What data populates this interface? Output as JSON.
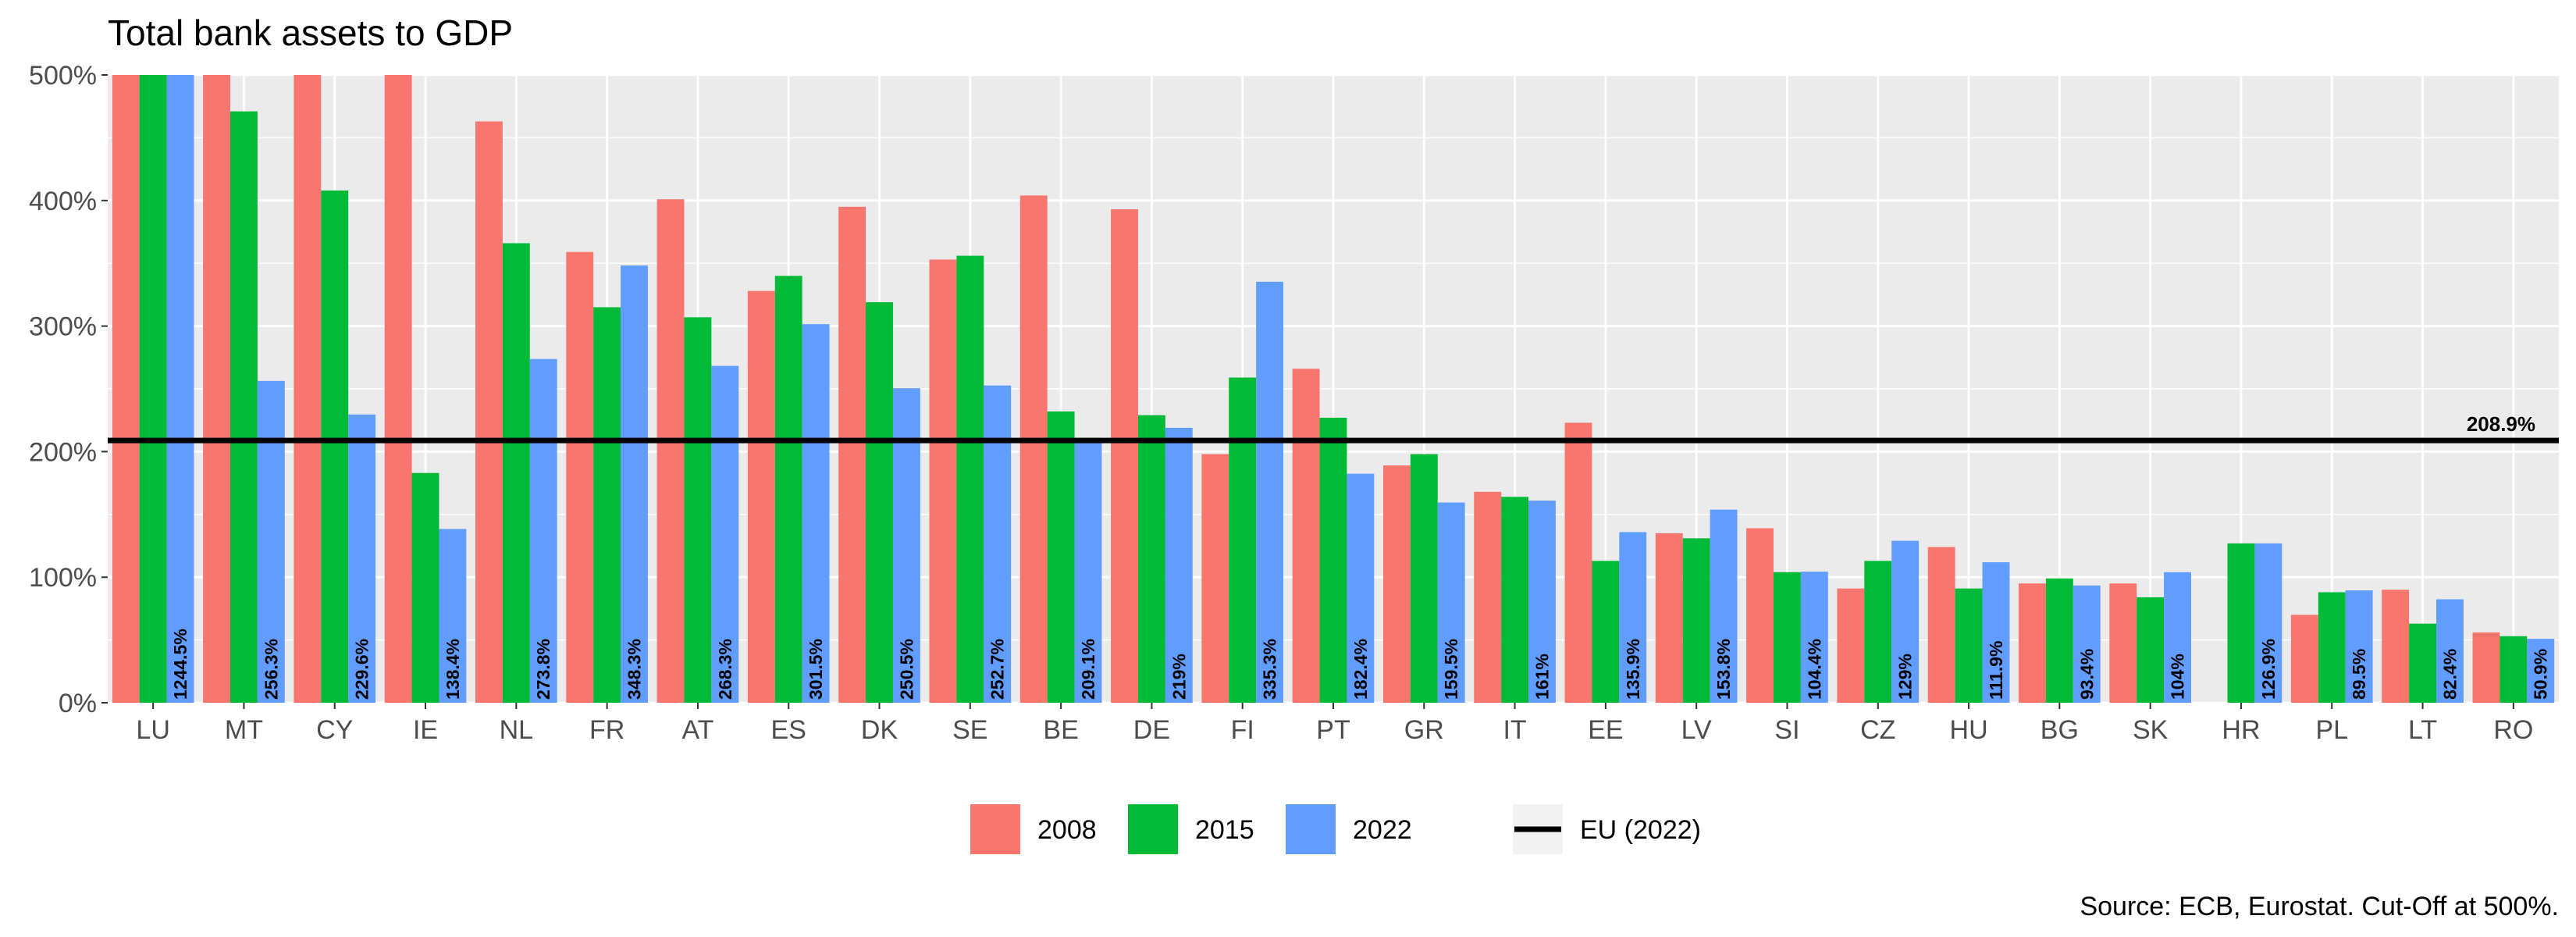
{
  "chart_data": {
    "type": "bar",
    "title": "Total bank assets to GDP",
    "caption": "Source: ECB, Eurostat. Cut-Off at 500%.",
    "categories": [
      "LU",
      "MT",
      "CY",
      "IE",
      "NL",
      "FR",
      "AT",
      "ES",
      "DK",
      "SE",
      "BE",
      "DE",
      "FI",
      "PT",
      "GR",
      "IT",
      "EE",
      "LV",
      "SI",
      "CZ",
      "HU",
      "BG",
      "SK",
      "HR",
      "PL",
      "LT",
      "RO"
    ],
    "series": [
      {
        "name": "2008",
        "color": "#F8766D",
        "values": [
          500,
          500,
          500,
          500,
          463,
          359,
          401,
          328,
          395,
          353,
          404,
          393,
          198,
          266,
          189,
          168,
          223,
          135,
          139,
          91,
          124,
          95,
          95,
          0,
          70,
          90,
          56
        ]
      },
      {
        "name": "2015",
        "color": "#00BA38",
        "values": [
          500,
          471,
          408,
          183,
          366,
          315,
          307,
          340,
          319,
          356,
          232,
          229,
          259,
          227,
          198,
          164,
          113,
          131,
          104,
          113,
          91,
          99,
          84,
          126.9,
          88,
          63,
          53
        ]
      },
      {
        "name": "2022",
        "color": "#619CFF",
        "values": [
          500,
          256.3,
          229.6,
          138.4,
          273.8,
          348.3,
          268.3,
          301.5,
          250.5,
          252.7,
          209.1,
          219,
          335.3,
          182.4,
          159.5,
          161,
          135.9,
          153.8,
          104.4,
          129,
          111.9,
          93.4,
          104,
          126.9,
          89.5,
          82.4,
          50.9
        ]
      }
    ],
    "value_labels": [
      "1244.5%",
      "256.3%",
      "229.6%",
      "138.4%",
      "273.8%",
      "348.3%",
      "268.3%",
      "301.5%",
      "250.5%",
      "252.7%",
      "209.1%",
      "219%",
      "335.3%",
      "182.4%",
      "159.5%",
      "161%",
      "135.9%",
      "153.8%",
      "104.4%",
      "129%",
      "111.9%",
      "93.4%",
      "104%",
      "126.9%",
      "89.5%",
      "82.4%",
      "50.9%"
    ],
    "reference_line": {
      "name": "EU (2022)",
      "value": 208.9,
      "label": "208.9%",
      "color": "#000000"
    },
    "y_ticks": [
      0,
      100,
      200,
      300,
      400,
      500
    ],
    "y_tick_labels": [
      "0%",
      "100%",
      "200%",
      "300%",
      "400%",
      "500%"
    ],
    "ylim": [
      0,
      500
    ],
    "grid": true,
    "legend_position": "bottom"
  }
}
